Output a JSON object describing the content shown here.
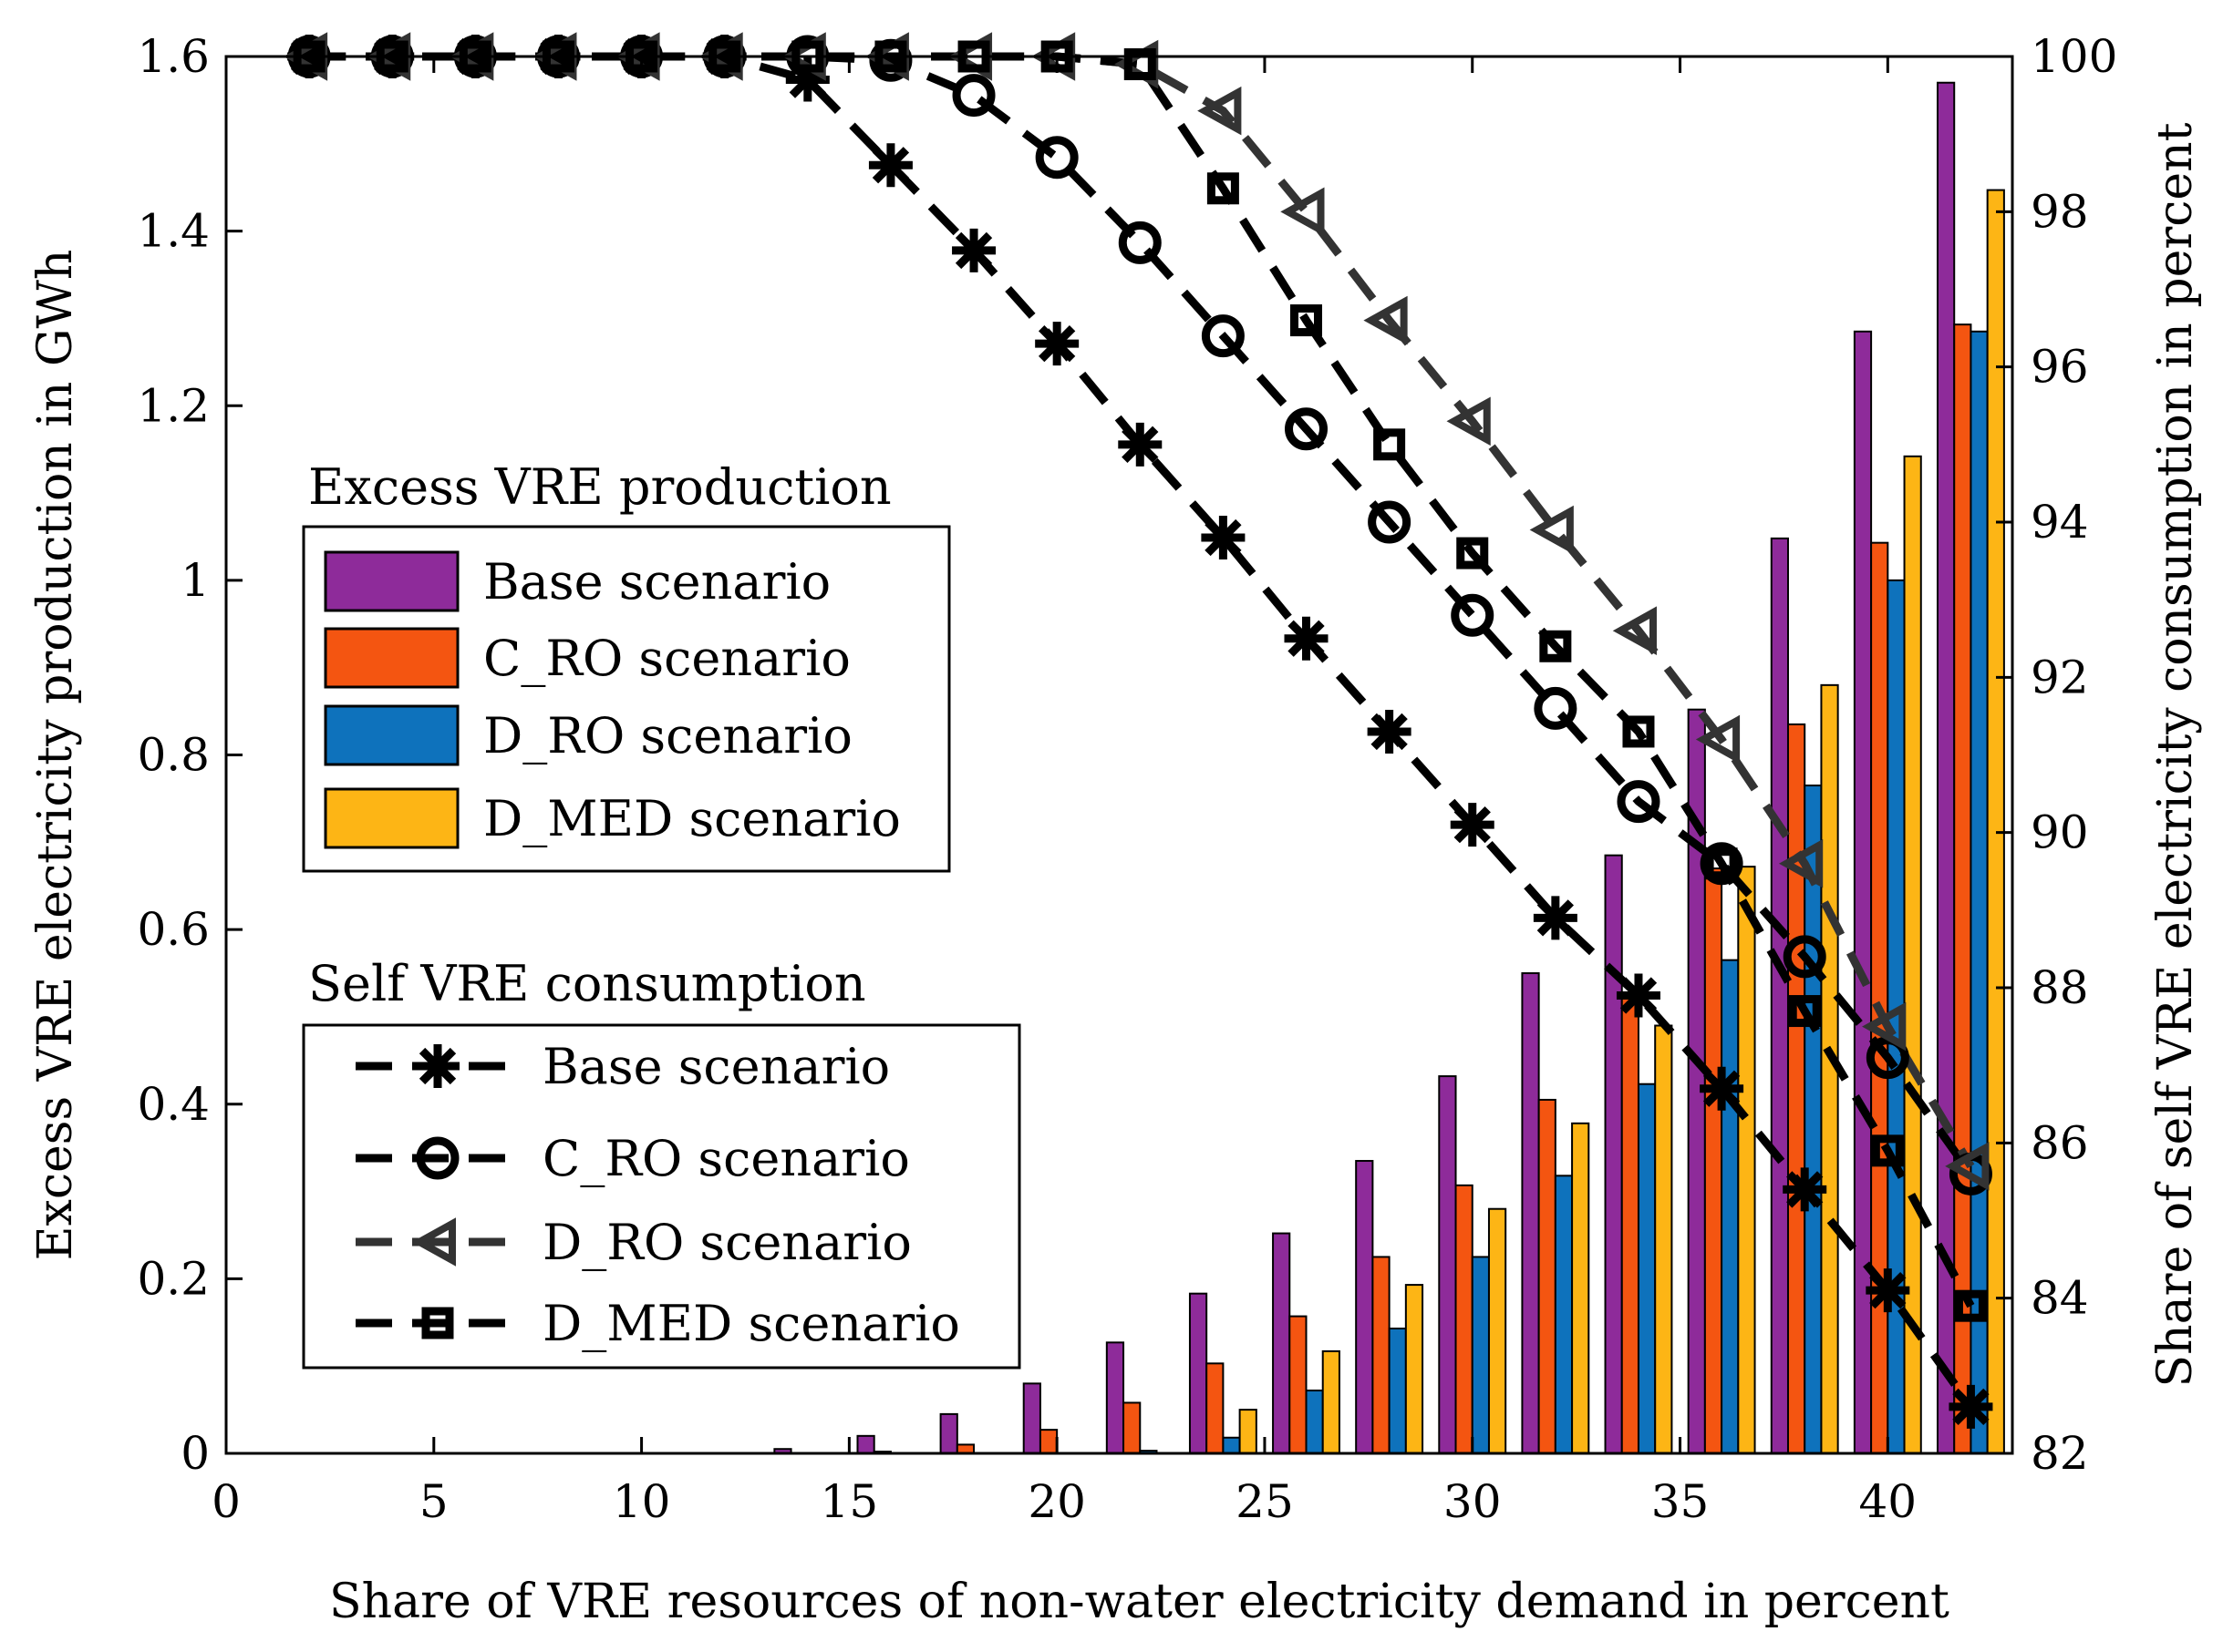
{
  "chart_data": {
    "type": "bar",
    "xlabel": "Share of VRE resources of non-water electricity demand in percent",
    "ylabel_left": "Excess VRE electricity production in GWh",
    "ylabel_right": "Share of self VRE electricity consumption in percent",
    "xlim": [
      0,
      43
    ],
    "ylim_left": [
      0,
      1.6
    ],
    "ylim_right": [
      82,
      100
    ],
    "x_ticks": [
      0,
      5,
      10,
      15,
      20,
      25,
      30,
      35,
      40
    ],
    "y_ticks_left": [
      0,
      0.2,
      0.4,
      0.6,
      0.8,
      1,
      1.2,
      1.4,
      1.6
    ],
    "y_tick_labels_left": [
      "0",
      "0.2",
      "0.4",
      "0.6",
      "0.8",
      "1",
      "1.2",
      "1.4",
      "1.6"
    ],
    "y_ticks_right": [
      82,
      84,
      86,
      88,
      90,
      92,
      94,
      96,
      98,
      100
    ],
    "categories": [
      2,
      4,
      6,
      8,
      10,
      12,
      14,
      16,
      18,
      20,
      22,
      24,
      26,
      28,
      30,
      32,
      34,
      36,
      38,
      40,
      42
    ],
    "bar_legend_title": "Excess VRE production",
    "line_legend_title": "Self VRE consumption",
    "bar_series": [
      {
        "name": "Base scenario",
        "color": "#8E2B9A",
        "values": [
          0,
          0,
          0,
          0,
          0,
          0,
          0.005,
          0.02,
          0.045,
          0.08,
          0.127,
          0.183,
          0.252,
          0.335,
          0.432,
          0.55,
          0.685,
          0.852,
          1.048,
          1.285,
          1.57
        ]
      },
      {
        "name": "C_RO scenario",
        "color": "#F45511",
        "values": [
          0,
          0,
          0,
          0,
          0,
          0,
          0,
          0.002,
          0.01,
          0.027,
          0.058,
          0.103,
          0.157,
          0.225,
          0.307,
          0.405,
          0.527,
          0.67,
          0.835,
          1.043,
          1.293
        ]
      },
      {
        "name": "D_RO scenario",
        "color": "#0E72BC",
        "values": [
          0,
          0,
          0,
          0,
          0,
          0,
          0,
          0,
          0,
          0,
          0.003,
          0.018,
          0.072,
          0.143,
          0.225,
          0.318,
          0.423,
          0.565,
          0.765,
          1.0,
          1.285
        ]
      },
      {
        "name": "D_MED scenario",
        "color": "#FDB515",
        "values": [
          0,
          0,
          0,
          0,
          0,
          0,
          0,
          0,
          0,
          0,
          0,
          0.05,
          0.117,
          0.193,
          0.28,
          0.378,
          0.49,
          0.672,
          0.88,
          1.142,
          1.447
        ]
      }
    ],
    "line_series": [
      {
        "name": "Base scenario",
        "marker": "asterisk",
        "x": [
          2,
          4,
          6,
          8,
          10,
          12,
          14,
          16,
          18,
          20,
          22,
          24,
          26,
          28,
          30,
          32,
          34,
          36,
          38,
          40,
          42
        ],
        "values": [
          100,
          100,
          100,
          100,
          100,
          100,
          99.7,
          98.6,
          97.5,
          96.3,
          95.0,
          93.8,
          92.5,
          91.3,
          90.1,
          88.9,
          87.9,
          86.7,
          85.4,
          84.1,
          82.6
        ]
      },
      {
        "name": "C_RO scenario",
        "marker": "circle",
        "x": [
          2,
          4,
          6,
          8,
          10,
          12,
          14,
          16,
          18,
          20,
          22,
          24,
          26,
          28,
          30,
          32,
          34,
          36,
          38,
          40,
          42
        ],
        "values": [
          100,
          100,
          100,
          100,
          100,
          100,
          100,
          99.95,
          99.5,
          98.7,
          97.6,
          96.4,
          95.2,
          94.0,
          92.8,
          91.6,
          90.4,
          89.6,
          88.4,
          87.1,
          85.6
        ]
      },
      {
        "name": "D_RO scenario",
        "marker": "triangle-left",
        "x": [
          2,
          4,
          6,
          8,
          10,
          12,
          14,
          16,
          18,
          20,
          22,
          24,
          26,
          28,
          30,
          32,
          34,
          36,
          38,
          40,
          42
        ],
        "values": [
          100,
          100,
          100,
          100,
          100,
          100,
          100,
          100,
          100,
          100,
          99.9,
          99.3,
          98.0,
          96.6,
          95.3,
          93.9,
          92.6,
          91.2,
          89.6,
          87.5,
          85.7
        ]
      },
      {
        "name": "D_MED scenario",
        "marker": "square",
        "x": [
          2,
          4,
          6,
          8,
          10,
          12,
          14,
          16,
          18,
          20,
          22,
          24,
          26,
          28,
          30,
          32,
          34,
          36,
          38,
          40,
          42
        ],
        "values": [
          100,
          100,
          100,
          100,
          100,
          100,
          100,
          100,
          100,
          100,
          99.9,
          98.3,
          96.6,
          95.0,
          93.6,
          92.4,
          91.3,
          89.6,
          87.7,
          85.9,
          83.9
        ]
      }
    ]
  }
}
